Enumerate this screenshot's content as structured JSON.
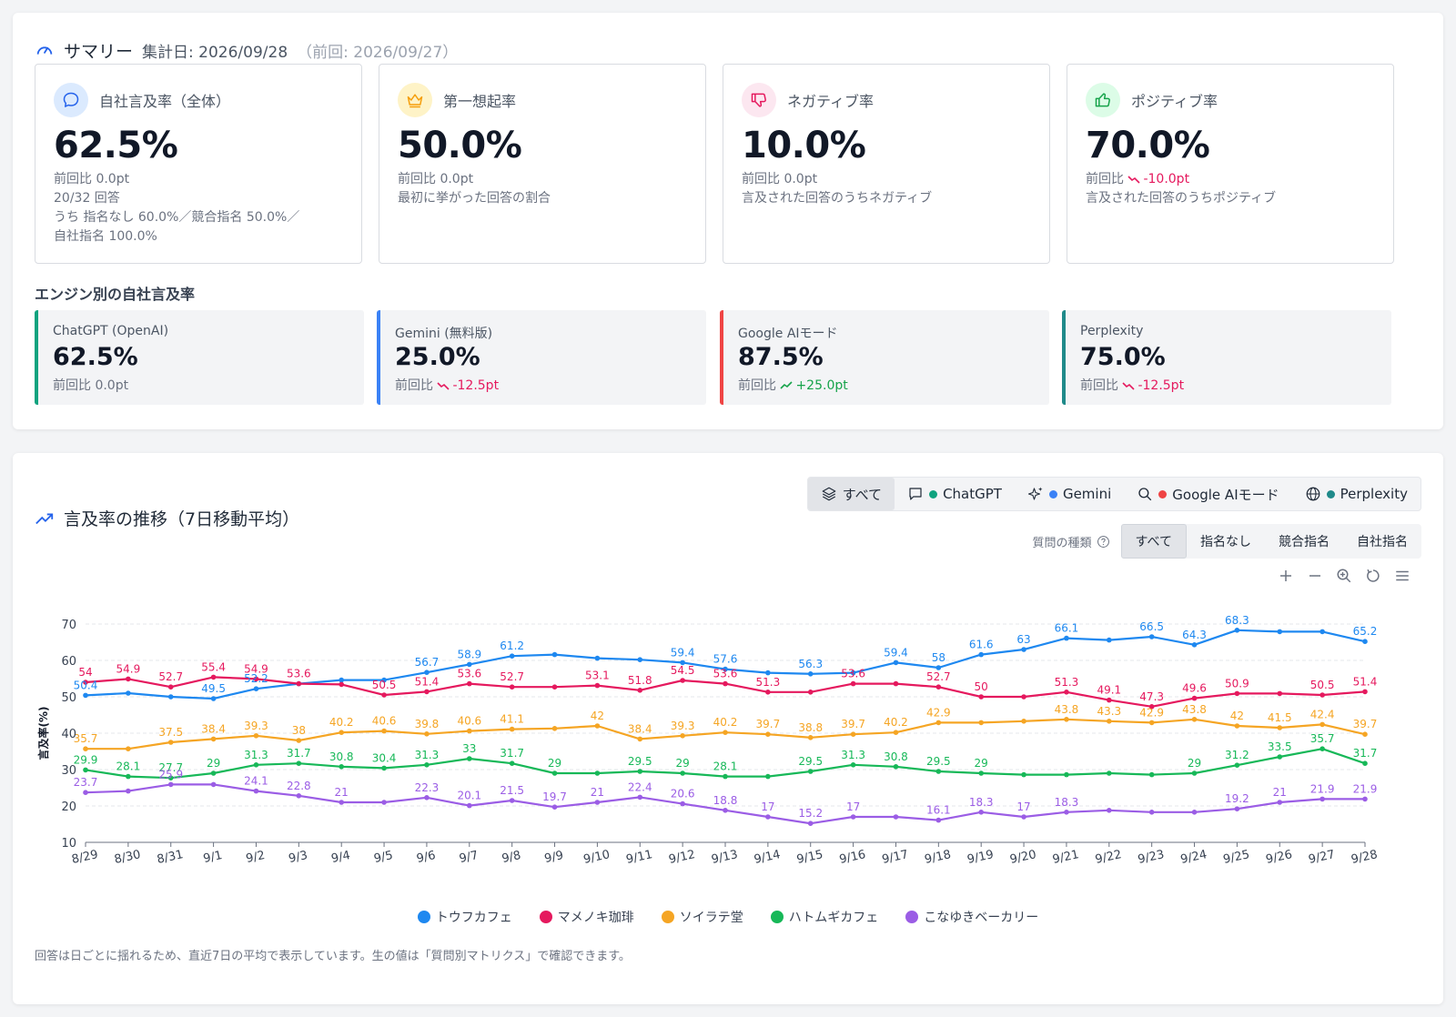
{
  "summary": {
    "title": "サマリー",
    "date": "集計日: 2026/09/28",
    "prev": "（前回: 2026/09/27）",
    "kpis": [
      {
        "label": "自社言及率（全体）",
        "value": "62.5%",
        "delta_prefix": "前回比",
        "delta": "0.0pt",
        "delta_dir": "flat",
        "lines": [
          "20/32 回答",
          "うち 指名なし 60.0%／競合指名 50.0%／",
          "自社指名 100.0%"
        ],
        "icon": "chat-bubble-icon",
        "color": "#2563eb"
      },
      {
        "label": "第一想起率",
        "value": "50.0%",
        "delta_prefix": "前回比",
        "delta": "0.0pt",
        "delta_dir": "flat",
        "lines": [
          "最初に挙がった回答の割合"
        ],
        "icon": "crown-icon",
        "color": "#f59e0b"
      },
      {
        "label": "ネガティブ率",
        "value": "10.0%",
        "delta_prefix": "前回比",
        "delta": "0.0pt",
        "delta_dir": "flat",
        "lines": [
          "言及された回答のうちネガティブ"
        ],
        "icon": "thumbs-down-icon",
        "color": "#e5195e"
      },
      {
        "label": "ポジティブ率",
        "value": "70.0%",
        "delta_prefix": "前回比",
        "delta": "-10.0pt",
        "delta_dir": "down",
        "lines": [
          "言及された回答のうちポジティブ"
        ],
        "icon": "thumbs-up-icon",
        "color": "#16a34a"
      }
    ],
    "engines_title": "エンジン別の自社言及率",
    "engines": [
      {
        "label": "ChatGPT (OpenAI)",
        "value": "62.5%",
        "delta_prefix": "前回比",
        "delta": "0.0pt",
        "delta_dir": "flat",
        "color": "#10a37f"
      },
      {
        "label": "Gemini (無料版)",
        "value": "25.0%",
        "delta_prefix": "前回比",
        "delta": "-12.5pt",
        "delta_dir": "down",
        "color": "#3b82f6"
      },
      {
        "label": "Google AIモード",
        "value": "87.5%",
        "delta_prefix": "前回比",
        "delta": "+25.0pt",
        "delta_dir": "up",
        "color": "#ef4444"
      },
      {
        "label": "Perplexity",
        "value": "75.0%",
        "delta_prefix": "前回比",
        "delta": "-12.5pt",
        "delta_dir": "down",
        "color": "#1f8a8a"
      }
    ]
  },
  "trend": {
    "title": "言及率の推移（7日移動平均）",
    "engine_tabs": [
      {
        "label": "すべて",
        "icon": "layers-icon",
        "dot": null,
        "active": true
      },
      {
        "label": "ChatGPT",
        "icon": "chat-square-icon",
        "dot": "#10a37f",
        "active": false
      },
      {
        "label": "Gemini",
        "icon": "sparkle-icon",
        "dot": "#3b82f6",
        "active": false
      },
      {
        "label": "Google AIモード",
        "icon": "search-icon",
        "dot": "#ef4444",
        "active": false
      },
      {
        "label": "Perplexity",
        "icon": "globe-icon",
        "dot": "#1f8a8a",
        "active": false
      }
    ],
    "qtype_label": "質問の種類",
    "qtype_tabs": [
      {
        "label": "すべて",
        "active": true
      },
      {
        "label": "指名なし",
        "active": false
      },
      {
        "label": "競合指名",
        "active": false
      },
      {
        "label": "自社指名",
        "active": false
      }
    ],
    "toolbox": [
      "zoom-in-icon",
      "zoom-out-icon",
      "zoom-reset-icon",
      "restore-icon",
      "menu-icon"
    ],
    "footnote": "回答は日ごとに揺れるため、直近7日の平均で表示しています。生の値は「質問別マトリクス」で確認できます。"
  },
  "chart_data": {
    "type": "line",
    "ylabel": "言及率(%)",
    "ylim": [
      10,
      70
    ],
    "yticks": [
      10,
      20,
      30,
      40,
      50,
      60,
      70
    ],
    "grid": true,
    "legend": "bottom",
    "categories": [
      "8/29",
      "8/30",
      "8/31",
      "9/1",
      "9/2",
      "9/3",
      "9/4",
      "9/5",
      "9/6",
      "9/7",
      "9/8",
      "9/9",
      "9/10",
      "9/11",
      "9/12",
      "9/13",
      "9/14",
      "9/15",
      "9/16",
      "9/17",
      "9/18",
      "9/19",
      "9/20",
      "9/21",
      "9/22",
      "9/23",
      "9/24",
      "9/25",
      "9/26",
      "9/27",
      "9/28"
    ],
    "series": [
      {
        "name": "トウフカフェ",
        "color": "#1e88f0",
        "values": [
          50.4,
          51,
          50,
          49.5,
          52.2,
          53.6,
          54.6,
          54.6,
          56.7,
          58.9,
          61.2,
          61.6,
          60.6,
          60.2,
          59.4,
          57.6,
          56.6,
          56.3,
          56.6,
          59.4,
          58,
          61.6,
          63,
          66.1,
          65.6,
          66.5,
          64.3,
          68.3,
          67.9,
          67.9,
          65.2
        ],
        "labels": [
          50.4,
          null,
          null,
          49.5,
          52.2,
          null,
          null,
          null,
          56.7,
          58.9,
          61.2,
          null,
          null,
          null,
          59.4,
          57.6,
          null,
          56.3,
          null,
          59.4,
          58,
          61.6,
          63,
          66.1,
          null,
          66.5,
          64.3,
          68.3,
          null,
          null,
          65.2
        ]
      },
      {
        "name": "マメノキ珈琲",
        "color": "#e5195e",
        "values": [
          54,
          54.9,
          52.7,
          55.4,
          54.9,
          53.6,
          53.4,
          50.5,
          51.4,
          53.6,
          52.7,
          52.7,
          53.1,
          51.8,
          54.5,
          53.6,
          51.3,
          51.3,
          53.6,
          53.6,
          52.7,
          50,
          50,
          51.3,
          49.1,
          47.3,
          49.6,
          50.9,
          50.9,
          50.5,
          51.4
        ],
        "labels": [
          54,
          54.9,
          52.7,
          55.4,
          54.9,
          53.6,
          null,
          50.5,
          51.4,
          53.6,
          52.7,
          null,
          53.1,
          51.8,
          54.5,
          53.6,
          51.3,
          null,
          53.6,
          null,
          52.7,
          50,
          null,
          51.3,
          49.1,
          47.3,
          49.6,
          50.9,
          null,
          50.5,
          51.4
        ]
      },
      {
        "name": "ソイラテ堂",
        "color": "#f5a524",
        "values": [
          35.7,
          35.7,
          37.5,
          38.4,
          39.3,
          38,
          40.2,
          40.6,
          39.8,
          40.6,
          41.1,
          41.3,
          42,
          38.4,
          39.3,
          40.2,
          39.7,
          38.8,
          39.7,
          40.2,
          42.9,
          42.9,
          43.3,
          43.8,
          43.3,
          42.9,
          43.8,
          42,
          41.5,
          42.4,
          39.7
        ],
        "labels": [
          35.7,
          null,
          37.5,
          38.4,
          39.3,
          38,
          40.2,
          40.6,
          39.8,
          40.6,
          41.1,
          null,
          42,
          38.4,
          39.3,
          40.2,
          39.7,
          38.8,
          39.7,
          40.2,
          42.9,
          null,
          null,
          43.8,
          43.3,
          42.9,
          43.8,
          42,
          41.5,
          42.4,
          39.7
        ]
      },
      {
        "name": "ハトムギカフェ",
        "color": "#17b858",
        "values": [
          29.9,
          28.1,
          27.7,
          29,
          31.3,
          31.7,
          30.8,
          30.4,
          31.3,
          33,
          31.7,
          29,
          29,
          29.5,
          29,
          28.1,
          28.1,
          29.5,
          31.3,
          30.8,
          29.5,
          29,
          28.6,
          28.6,
          29,
          28.6,
          29,
          31.2,
          33.5,
          35.7,
          31.7
        ],
        "labels": [
          29.9,
          28.1,
          27.7,
          29,
          31.3,
          31.7,
          30.8,
          30.4,
          31.3,
          33,
          31.7,
          29,
          null,
          29.5,
          29,
          28.1,
          null,
          29.5,
          31.3,
          30.8,
          29.5,
          29,
          null,
          null,
          null,
          null,
          29,
          31.2,
          33.5,
          35.7,
          31.7
        ]
      },
      {
        "name": "こなゆきベーカリー",
        "color": "#9b5de5",
        "values": [
          23.7,
          24.1,
          25.9,
          25.9,
          24.1,
          22.8,
          21,
          21,
          22.3,
          20.1,
          21.5,
          19.7,
          21,
          22.4,
          20.6,
          18.8,
          17,
          15.2,
          17,
          17,
          16.1,
          18.3,
          17,
          18.3,
          18.8,
          18.3,
          18.3,
          19.2,
          21,
          21.9,
          21.9
        ],
        "labels": [
          23.7,
          null,
          25.9,
          null,
          24.1,
          22.8,
          21,
          null,
          22.3,
          20.1,
          21.5,
          19.7,
          21,
          22.4,
          20.6,
          18.8,
          17,
          15.2,
          17,
          null,
          16.1,
          18.3,
          17,
          18.3,
          null,
          null,
          null,
          19.2,
          21,
          21.9,
          21.9
        ]
      }
    ]
  }
}
